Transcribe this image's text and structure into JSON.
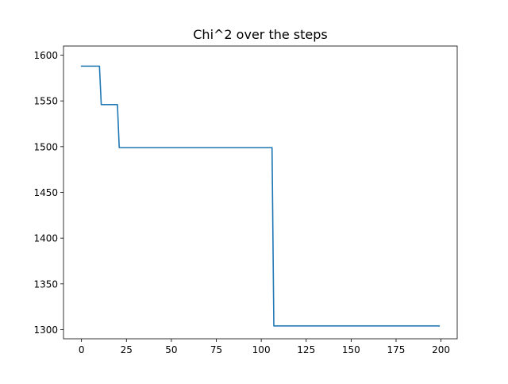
{
  "chart_data": {
    "type": "line",
    "title": "Chi^2 over the steps",
    "xlabel": "",
    "ylabel": "",
    "xlim": [
      -10,
      209
    ],
    "ylim": [
      1290,
      1610
    ],
    "x_ticks": [
      0,
      25,
      50,
      75,
      100,
      125,
      150,
      175,
      200
    ],
    "y_ticks": [
      1300,
      1350,
      1400,
      1450,
      1500,
      1550,
      1600
    ],
    "grid": false,
    "legend": "none",
    "series": [
      {
        "color": "#1f77b4",
        "points": [
          [
            0,
            1588
          ],
          [
            10,
            1588
          ],
          [
            11,
            1546
          ],
          [
            20,
            1546
          ],
          [
            21,
            1499
          ],
          [
            106,
            1499
          ],
          [
            107,
            1304
          ],
          [
            199,
            1304
          ]
        ]
      }
    ]
  }
}
